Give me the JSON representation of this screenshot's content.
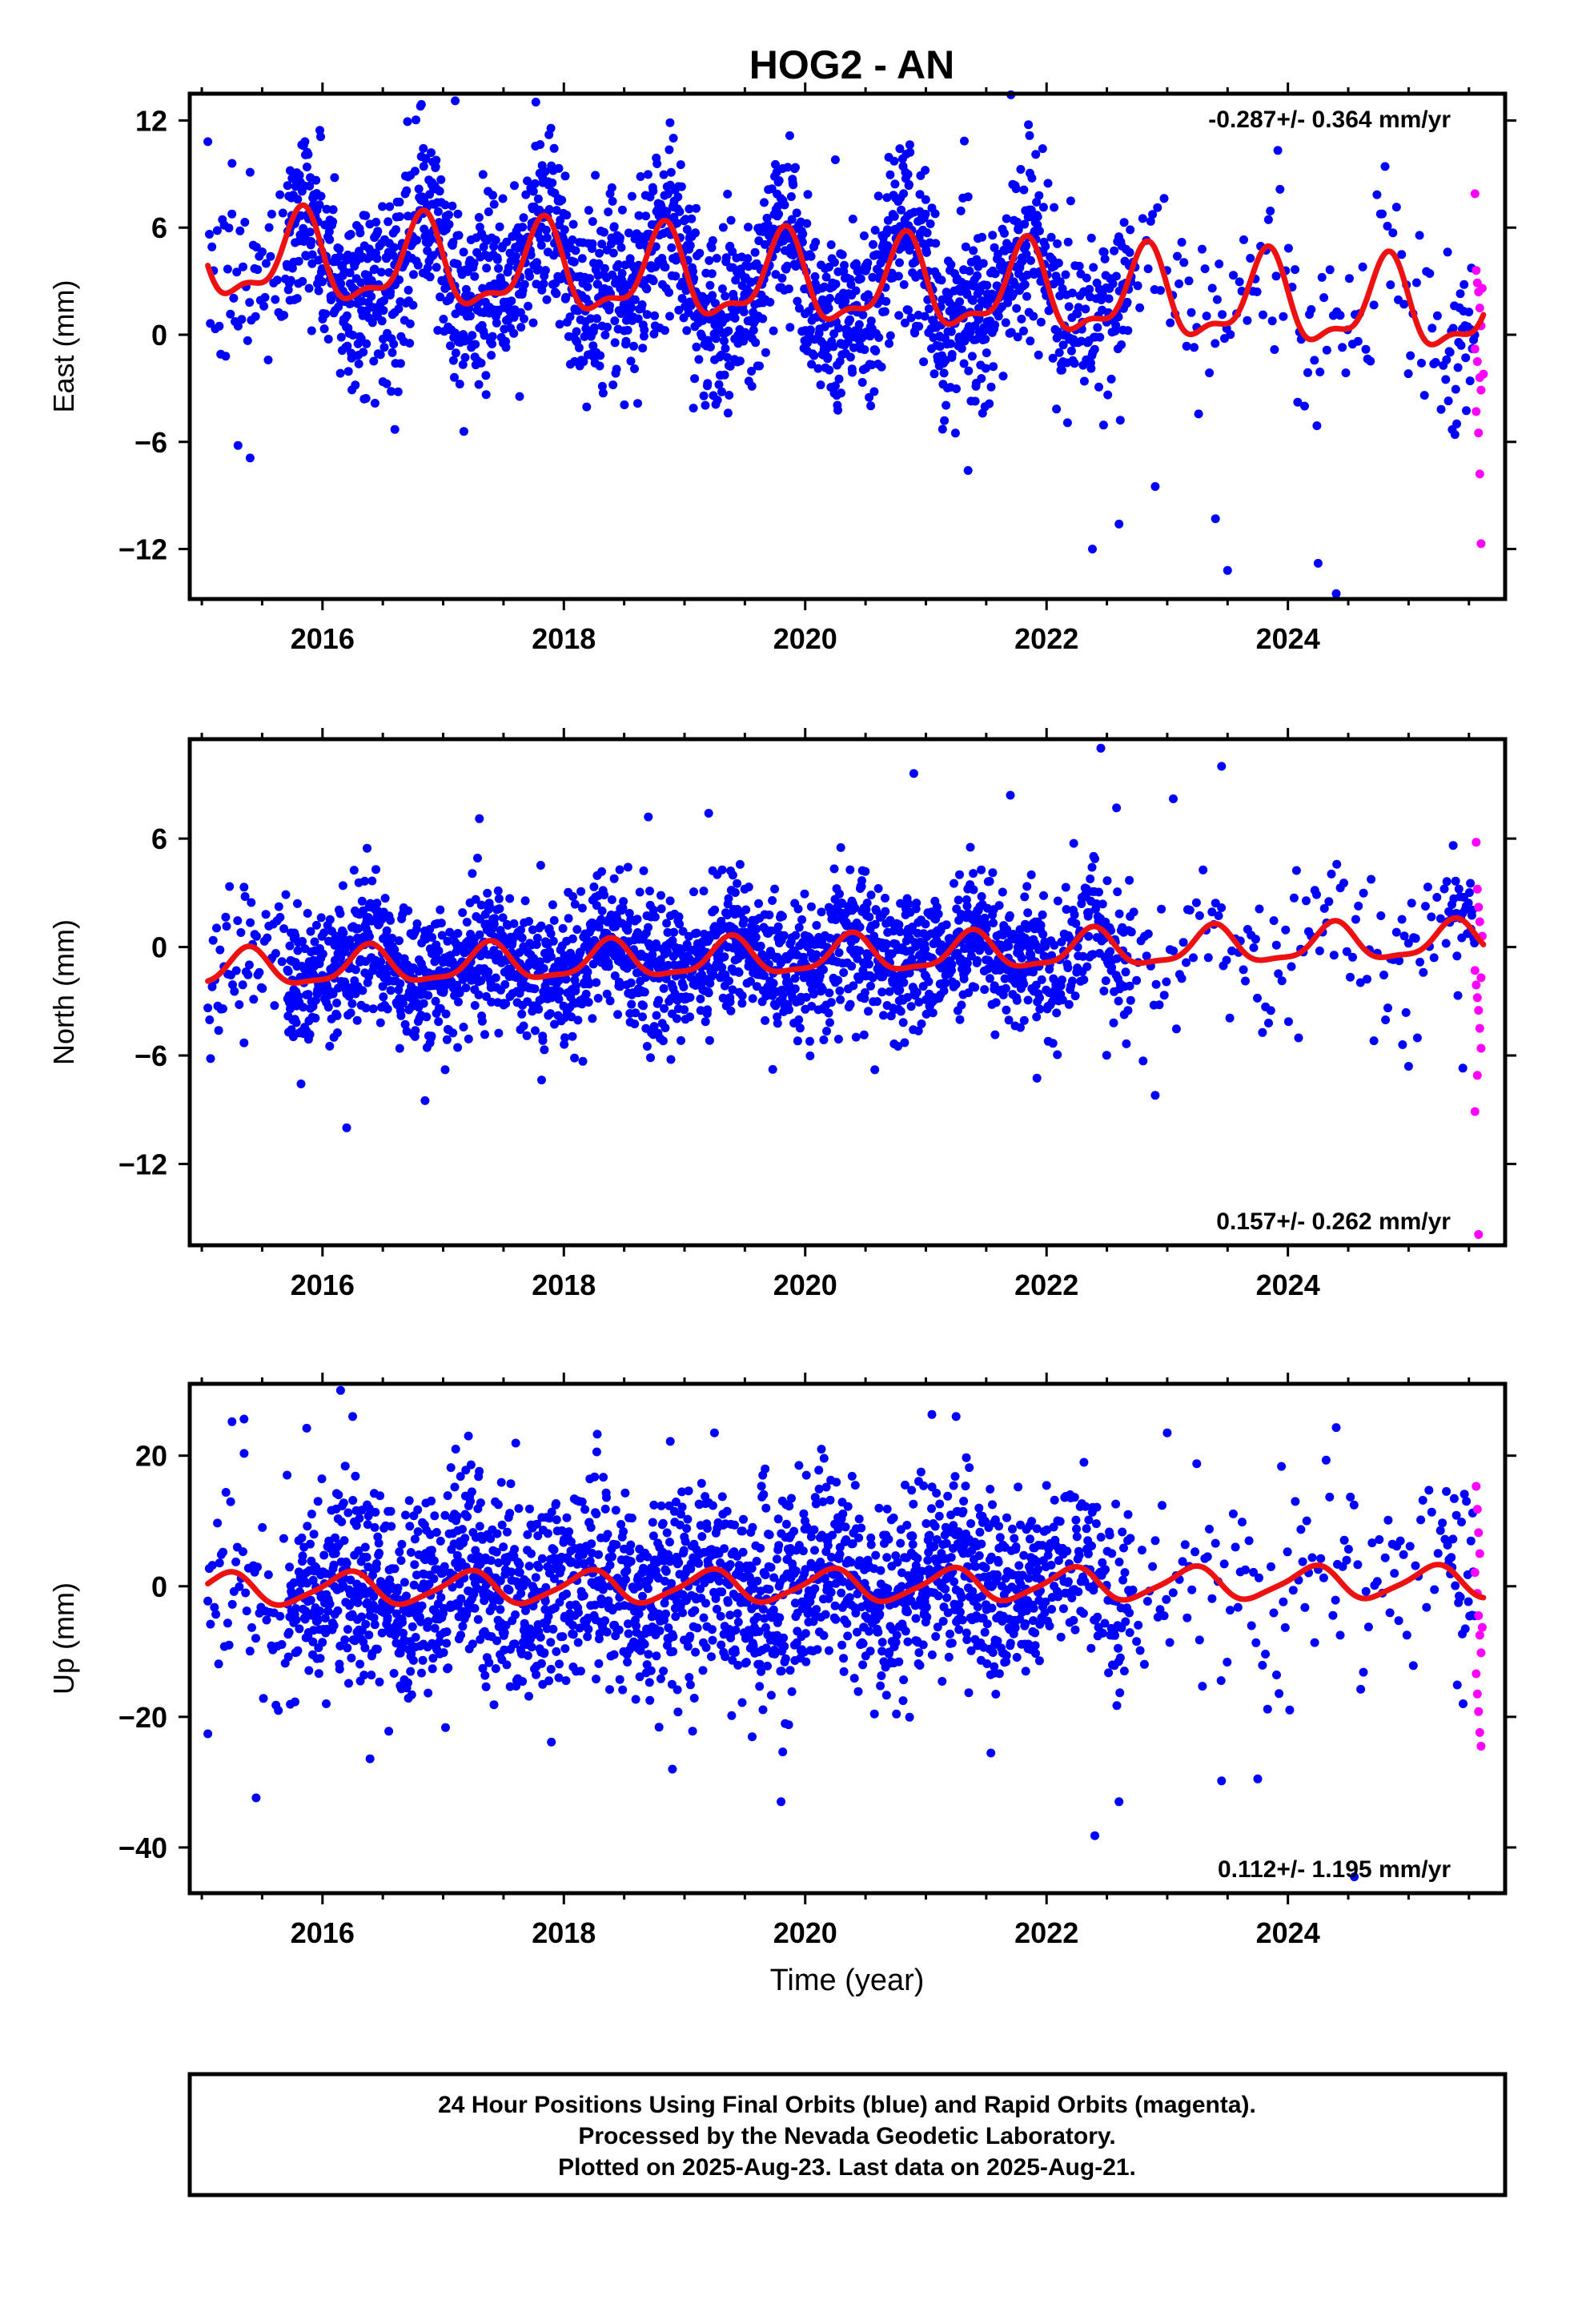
{
  "title": "HOG2 - AN",
  "x_axis_title": "Time (year)",
  "footer": {
    "line1": "24 Hour Positions Using Final Orbits (blue) and Rapid Orbits (magenta).",
    "line2": "Processed by the Nevada Geodetic Laboratory.",
    "line3": "Plotted on 2025-Aug-23. Last data on 2025-Aug-21."
  },
  "colors": {
    "final_orbits": "#0000ff",
    "rapid_orbits": "#ff00ff",
    "model_fit": "#ee1111",
    "frame": "#000000"
  },
  "chart_data": [
    {
      "type": "scatter",
      "name": "east",
      "ylabel": "East (mm)",
      "rate_label": "-0.287+/- 0.364 mm/yr",
      "rate_position": "top-right",
      "xlim": [
        2014.9,
        2025.8
      ],
      "ylim": [
        -14.8,
        13.5
      ],
      "x_ticks": [
        2016,
        2018,
        2020,
        2022,
        2024
      ],
      "y_ticks": [
        -12,
        -6,
        0,
        6,
        12
      ],
      "grid": false,
      "fit": {
        "offset": 4.3,
        "slope": -0.287,
        "reference_year": 2015.1,
        "annual_amplitude": 2.3,
        "annual_peak": 2015.82,
        "semiannual_amplitude": 0.9,
        "semiannual_peak": 2015.85
      },
      "scatter_spread": 2.5,
      "rapid_points": [
        [
          2025.55,
          7.9
        ],
        [
          2025.56,
          3.6
        ],
        [
          2025.57,
          2.9
        ],
        [
          2025.58,
          2.4
        ],
        [
          2025.59,
          1.5
        ],
        [
          2025.6,
          0.5
        ],
        [
          2025.55,
          -0.8
        ],
        [
          2025.57,
          -1.5
        ],
        [
          2025.59,
          -2.4
        ],
        [
          2025.6,
          -3.1
        ],
        [
          2025.56,
          -4.3
        ],
        [
          2025.58,
          -5.5
        ],
        [
          2025.59,
          -7.8
        ],
        [
          2025.6,
          -11.7
        ],
        [
          2025.61,
          2.6
        ],
        [
          2025.62,
          -2.2
        ]
      ],
      "outliers": [
        [
          2015.25,
          9.6
        ],
        [
          2015.4,
          9.1
        ],
        [
          2016.1,
          8.8
        ],
        [
          2016.82,
          12.9
        ],
        [
          2017.1,
          13.1
        ],
        [
          2016.9,
          10.2
        ],
        [
          2019.9,
          8.4
        ],
        [
          2020.25,
          9.8
        ],
        [
          2020.95,
          6.9
        ],
        [
          2015.3,
          -6.2
        ],
        [
          2015.4,
          -6.9
        ],
        [
          2016.6,
          -5.3
        ],
        [
          2022.38,
          -12.0
        ],
        [
          2022.6,
          -10.6
        ],
        [
          2023.4,
          -10.3
        ],
        [
          2023.5,
          -13.2
        ],
        [
          2024.4,
          -14.5
        ],
        [
          2024.25,
          -12.8
        ],
        [
          2022.9,
          -8.5
        ],
        [
          2021.35,
          -7.6
        ]
      ]
    },
    {
      "type": "scatter",
      "name": "north",
      "ylabel": "North (mm)",
      "rate_label": "0.157+/- 0.262 mm/yr",
      "rate_position": "bottom-right",
      "xlim": [
        2014.9,
        2025.8
      ],
      "ylim": [
        -16.5,
        11.5
      ],
      "x_ticks": [
        2016,
        2018,
        2020,
        2022,
        2024
      ],
      "y_ticks": [
        -12,
        -6,
        0,
        6
      ],
      "grid": false,
      "fit": {
        "offset": -1.3,
        "slope": 0.157,
        "reference_year": 2015.1,
        "annual_amplitude": 1.0,
        "annual_peak": 2015.38,
        "semiannual_amplitude": 0.3,
        "semiannual_peak": 2015.4
      },
      "scatter_spread": 1.9,
      "rapid_points": [
        [
          2025.56,
          5.8
        ],
        [
          2025.57,
          3.2
        ],
        [
          2025.58,
          2.2
        ],
        [
          2025.59,
          1.4
        ],
        [
          2025.55,
          -1.3
        ],
        [
          2025.56,
          -2.1
        ],
        [
          2025.57,
          -2.8
        ],
        [
          2025.58,
          -3.5
        ],
        [
          2025.59,
          -4.5
        ],
        [
          2025.6,
          -5.6
        ],
        [
          2025.57,
          -7.1
        ],
        [
          2025.55,
          -9.1
        ],
        [
          2025.58,
          -15.9
        ],
        [
          2025.61,
          0.6
        ],
        [
          2025.6,
          -1.7
        ]
      ],
      "outliers": [
        [
          2016.2,
          -10.0
        ],
        [
          2016.85,
          -8.5
        ],
        [
          2015.35,
          -5.3
        ],
        [
          2017.3,
          7.1
        ],
        [
          2018.7,
          7.2
        ],
        [
          2019.2,
          7.4
        ],
        [
          2020.9,
          9.6
        ],
        [
          2021.7,
          8.4
        ],
        [
          2022.45,
          11.0
        ],
        [
          2022.58,
          7.7
        ],
        [
          2022.9,
          -8.2
        ],
        [
          2022.8,
          -6.3
        ],
        [
          2023.45,
          10.0
        ],
        [
          2024.95,
          -5.4
        ],
        [
          2025.0,
          -6.6
        ],
        [
          2025.45,
          -6.7
        ],
        [
          2023.05,
          8.2
        ]
      ]
    },
    {
      "type": "scatter",
      "name": "up",
      "ylabel": "Up (mm)",
      "rate_label": "0.112+/- 1.195 mm/yr",
      "rate_position": "bottom-right",
      "xlim": [
        2014.9,
        2025.8
      ],
      "ylim": [
        -47,
        31
      ],
      "x_ticks": [
        2016,
        2018,
        2020,
        2022,
        2024
      ],
      "y_ticks": [
        -40,
        -20,
        0,
        20
      ],
      "grid": false,
      "fit": {
        "offset": -0.5,
        "slope": 0.112,
        "reference_year": 2015.1,
        "annual_amplitude": 2.4,
        "annual_peak": 2015.2,
        "semiannual_amplitude": 0.5,
        "semiannual_peak": 2015.3
      },
      "scatter_spread": 7.5,
      "rapid_points": [
        [
          2025.56,
          15.3
        ],
        [
          2025.57,
          11.8
        ],
        [
          2025.58,
          8.2
        ],
        [
          2025.59,
          5.0
        ],
        [
          2025.55,
          2.1
        ],
        [
          2025.57,
          -1.1
        ],
        [
          2025.58,
          -4.5
        ],
        [
          2025.59,
          -7.5
        ],
        [
          2025.6,
          -10.2
        ],
        [
          2025.56,
          -13.4
        ],
        [
          2025.57,
          -16.5
        ],
        [
          2025.58,
          -19.2
        ],
        [
          2025.59,
          -22.4
        ],
        [
          2025.6,
          -24.5
        ],
        [
          2025.61,
          -6.3
        ]
      ],
      "outliers": [
        [
          2016.15,
          30.0
        ],
        [
          2015.35,
          25.6
        ],
        [
          2015.25,
          25.2
        ],
        [
          2016.25,
          26.0
        ],
        [
          2021.05,
          26.3
        ],
        [
          2021.25,
          26.0
        ],
        [
          2024.4,
          24.3
        ],
        [
          2015.05,
          -22.6
        ],
        [
          2015.45,
          -32.4
        ],
        [
          2019.8,
          -33.0
        ],
        [
          2022.4,
          -38.2
        ],
        [
          2022.6,
          -33.0
        ],
        [
          2024.55,
          -44.5
        ],
        [
          2023.45,
          -29.8
        ],
        [
          2023.75,
          -29.5
        ],
        [
          2018.9,
          -28.0
        ],
        [
          2023.0,
          23.5
        ]
      ]
    }
  ]
}
